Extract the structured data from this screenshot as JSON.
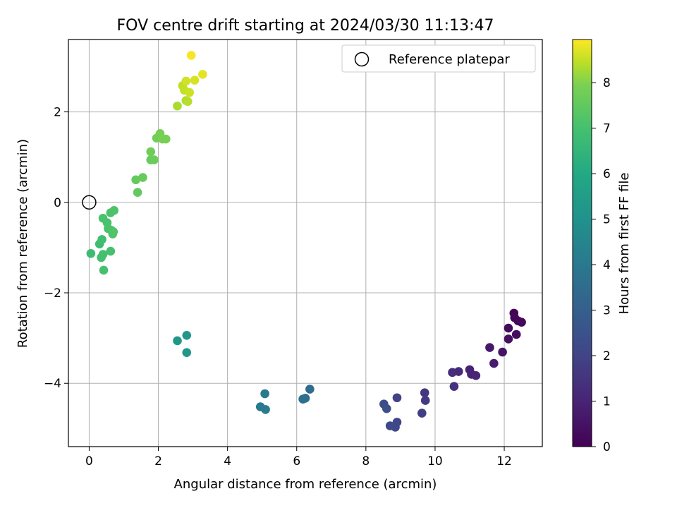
{
  "chart_data": {
    "type": "scatter",
    "title": "FOV centre drift starting at 2024/03/30 11:13:47",
    "xlabel": "Angular distance from reference (arcmin)",
    "ylabel": "Rotation from reference (arcmin)",
    "xlim": [
      -0.6,
      13.1
    ],
    "ylim": [
      -5.4,
      3.6
    ],
    "xticks": [
      0,
      2,
      4,
      6,
      8,
      10,
      12
    ],
    "yticks": [
      -4,
      -2,
      0,
      2
    ],
    "grid": true,
    "legend": {
      "position": "top-right",
      "entries": [
        {
          "label": "Reference platepar",
          "marker": "open-circle"
        }
      ]
    },
    "reference_point": {
      "x": 0,
      "y": 0
    },
    "colorbar": {
      "label": "Hours from first FF file",
      "colormap": "viridis",
      "min": 0,
      "max": 8.95,
      "ticks": [
        0,
        1,
        2,
        3,
        4,
        5,
        6,
        7,
        8
      ]
    },
    "points": [
      {
        "x": 12.28,
        "y": -2.45,
        "t": 0.05
      },
      {
        "x": 12.3,
        "y": -2.55,
        "t": 0.1
      },
      {
        "x": 12.4,
        "y": -2.62,
        "t": 0.15
      },
      {
        "x": 12.5,
        "y": -2.65,
        "t": 0.2
      },
      {
        "x": 12.12,
        "y": -2.78,
        "t": 0.3
      },
      {
        "x": 12.35,
        "y": -2.92,
        "t": 0.35
      },
      {
        "x": 12.12,
        "y": -3.02,
        "t": 0.45
      },
      {
        "x": 11.95,
        "y": -3.31,
        "t": 0.55
      },
      {
        "x": 11.58,
        "y": -3.21,
        "t": 0.65
      },
      {
        "x": 11.7,
        "y": -3.56,
        "t": 0.75
      },
      {
        "x": 11.0,
        "y": -3.7,
        "t": 0.9
      },
      {
        "x": 11.05,
        "y": -3.8,
        "t": 1.0
      },
      {
        "x": 11.18,
        "y": -3.83,
        "t": 1.05
      },
      {
        "x": 10.68,
        "y": -3.74,
        "t": 1.2
      },
      {
        "x": 10.5,
        "y": -3.76,
        "t": 1.3
      },
      {
        "x": 10.55,
        "y": -4.07,
        "t": 1.4
      },
      {
        "x": 9.7,
        "y": -4.21,
        "t": 1.6
      },
      {
        "x": 9.72,
        "y": -4.38,
        "t": 1.7
      },
      {
        "x": 9.62,
        "y": -4.66,
        "t": 1.8
      },
      {
        "x": 8.9,
        "y": -4.32,
        "t": 1.95
      },
      {
        "x": 8.9,
        "y": -4.86,
        "t": 2.05
      },
      {
        "x": 8.85,
        "y": -4.97,
        "t": 2.1
      },
      {
        "x": 8.7,
        "y": -4.94,
        "t": 2.2
      },
      {
        "x": 8.52,
        "y": -4.46,
        "t": 2.3
      },
      {
        "x": 8.6,
        "y": -4.56,
        "t": 2.4
      },
      {
        "x": 6.38,
        "y": -4.13,
        "t": 3.5
      },
      {
        "x": 6.25,
        "y": -4.33,
        "t": 3.6
      },
      {
        "x": 6.18,
        "y": -4.35,
        "t": 3.65
      },
      {
        "x": 5.08,
        "y": -4.23,
        "t": 4.0
      },
      {
        "x": 4.95,
        "y": -4.52,
        "t": 4.05
      },
      {
        "x": 5.1,
        "y": -4.58,
        "t": 4.1
      },
      {
        "x": 2.82,
        "y": -2.94,
        "t": 5.2
      },
      {
        "x": 2.55,
        "y": -3.06,
        "t": 5.25
      },
      {
        "x": 2.82,
        "y": -3.32,
        "t": 5.3
      },
      {
        "x": 0.05,
        "y": -1.13,
        "t": 6.8
      },
      {
        "x": 0.3,
        "y": -0.92,
        "t": 6.85
      },
      {
        "x": 0.37,
        "y": -0.82,
        "t": 6.9
      },
      {
        "x": 0.35,
        "y": -1.22,
        "t": 6.95
      },
      {
        "x": 0.4,
        "y": -1.15,
        "t": 6.95
      },
      {
        "x": 0.42,
        "y": -1.5,
        "t": 7.0
      },
      {
        "x": 0.62,
        "y": -1.08,
        "t": 7.0
      },
      {
        "x": 0.4,
        "y": -0.35,
        "t": 7.05
      },
      {
        "x": 0.52,
        "y": -0.45,
        "t": 7.05
      },
      {
        "x": 0.55,
        "y": -0.58,
        "t": 7.1
      },
      {
        "x": 0.62,
        "y": -0.23,
        "t": 7.1
      },
      {
        "x": 0.72,
        "y": -0.18,
        "t": 7.15
      },
      {
        "x": 0.65,
        "y": -0.62,
        "t": 7.15
      },
      {
        "x": 0.7,
        "y": -0.65,
        "t": 7.2
      },
      {
        "x": 0.68,
        "y": -0.7,
        "t": 7.2
      },
      {
        "x": 1.4,
        "y": 0.22,
        "t": 7.5
      },
      {
        "x": 1.35,
        "y": 0.5,
        "t": 7.55
      },
      {
        "x": 1.55,
        "y": 0.55,
        "t": 7.6
      },
      {
        "x": 1.78,
        "y": 0.94,
        "t": 7.65
      },
      {
        "x": 1.88,
        "y": 0.94,
        "t": 7.7
      },
      {
        "x": 1.78,
        "y": 1.12,
        "t": 7.75
      },
      {
        "x": 1.95,
        "y": 1.42,
        "t": 7.8
      },
      {
        "x": 2.05,
        "y": 1.52,
        "t": 7.85
      },
      {
        "x": 2.12,
        "y": 1.4,
        "t": 7.9
      },
      {
        "x": 2.22,
        "y": 1.4,
        "t": 7.9
      },
      {
        "x": 2.55,
        "y": 2.13,
        "t": 8.3
      },
      {
        "x": 2.8,
        "y": 2.25,
        "t": 8.35
      },
      {
        "x": 2.85,
        "y": 2.23,
        "t": 8.4
      },
      {
        "x": 2.7,
        "y": 2.58,
        "t": 8.45
      },
      {
        "x": 2.75,
        "y": 2.48,
        "t": 8.5
      },
      {
        "x": 2.9,
        "y": 2.43,
        "t": 8.55
      },
      {
        "x": 2.8,
        "y": 2.68,
        "t": 8.6
      },
      {
        "x": 3.05,
        "y": 2.7,
        "t": 8.65
      },
      {
        "x": 3.28,
        "y": 2.83,
        "t": 8.75
      },
      {
        "x": 2.95,
        "y": 3.25,
        "t": 8.9
      }
    ]
  }
}
